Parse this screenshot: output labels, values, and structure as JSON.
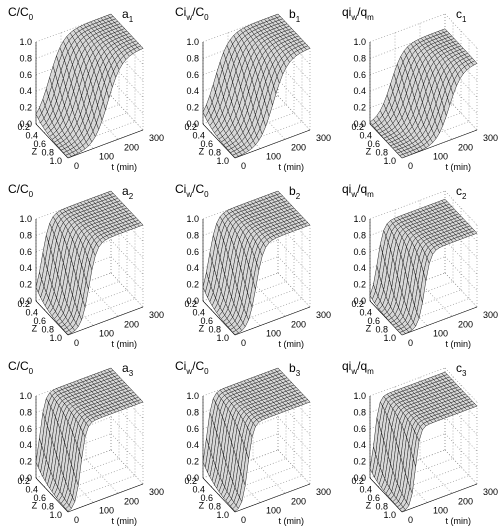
{
  "axes": {
    "c_ticks": [
      "0.0",
      "0.2",
      "0.4",
      "0.6",
      "0.8",
      "1.0"
    ],
    "Z_ticks": [
      "0.2",
      "0.4",
      "0.6",
      "0.8",
      "1.0"
    ],
    "t_ticks": [
      "0",
      "100",
      "200",
      "300"
    ],
    "Z_label": "Z",
    "t_label": "t (min)"
  },
  "panels": [
    {
      "ylabel": [
        "C/C",
        "0"
      ],
      "label": [
        "a",
        "1"
      ]
    },
    {
      "ylabel": [
        "Ci",
        "w",
        "/C",
        "0"
      ],
      "label": [
        "b",
        "1"
      ]
    },
    {
      "ylabel": [
        "qi",
        "w",
        "/q",
        "m"
      ],
      "label": [
        "c",
        "1"
      ]
    },
    {
      "ylabel": [
        "C/C",
        "0"
      ],
      "label": [
        "a",
        "2"
      ]
    },
    {
      "ylabel": [
        "Ci",
        "w",
        "/C",
        "0"
      ],
      "label": [
        "b",
        "2"
      ]
    },
    {
      "ylabel": [
        "qi",
        "w",
        "/q",
        "m"
      ],
      "label": [
        "c",
        "2"
      ]
    },
    {
      "ylabel": [
        "C/C",
        "0"
      ],
      "label": [
        "a",
        "3"
      ]
    },
    {
      "ylabel": [
        "Ci",
        "w",
        "/C",
        "0"
      ],
      "label": [
        "b",
        "3"
      ]
    },
    {
      "ylabel": [
        "qi",
        "w",
        "/q",
        "m"
      ],
      "label": [
        "c",
        "3"
      ]
    }
  ]
}
